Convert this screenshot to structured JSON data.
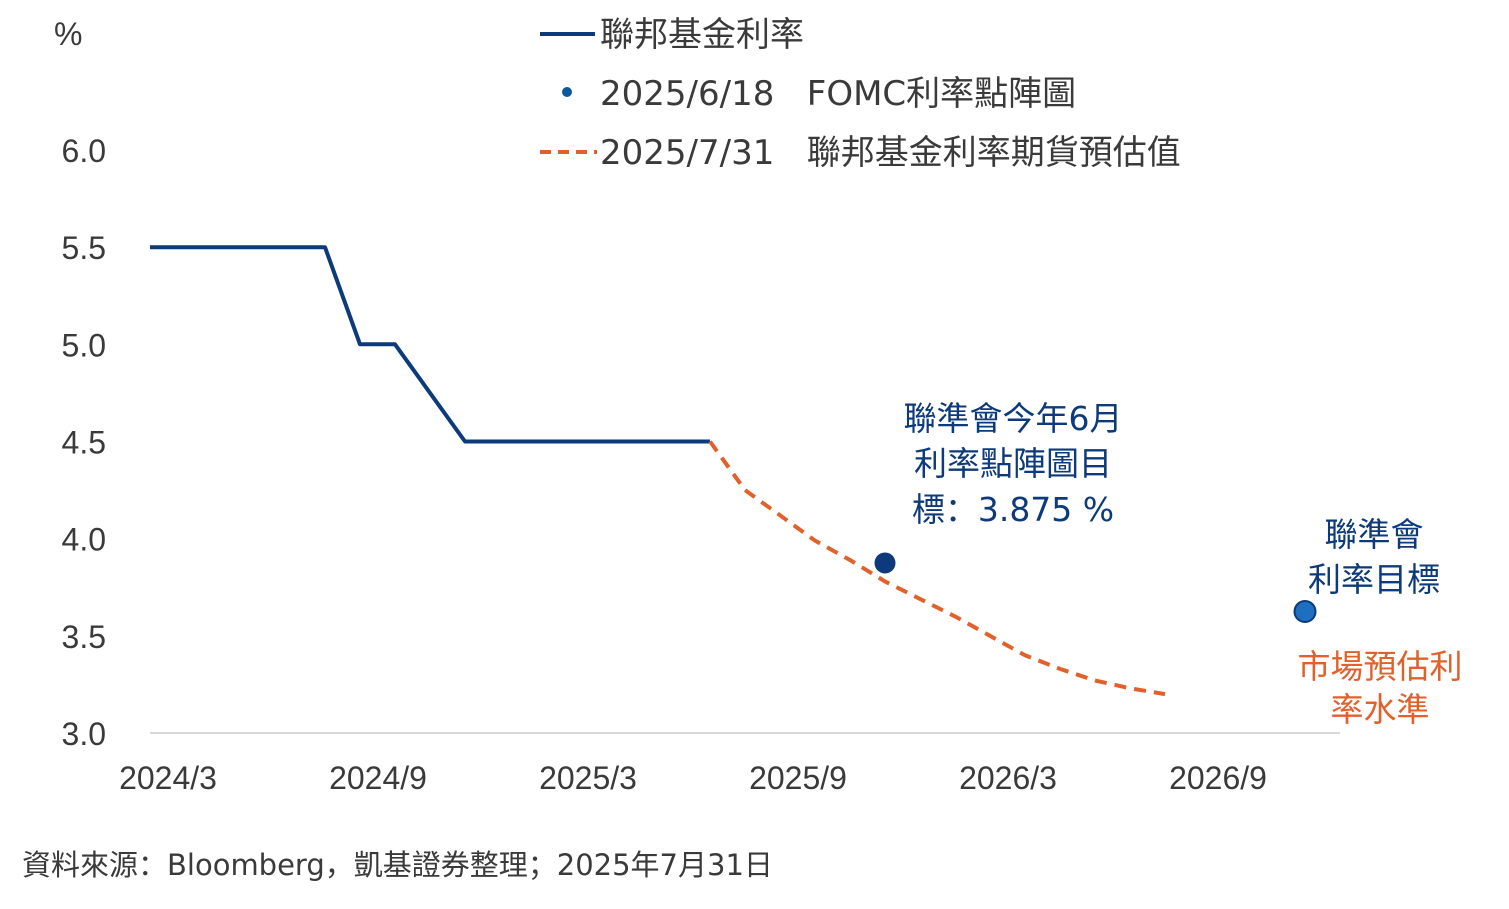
{
  "chart_data": {
    "type": "line",
    "ylabel": "%",
    "ylim": [
      3.0,
      6.0
    ],
    "yticks": [
      "3.0",
      "3.5",
      "4.0",
      "4.5",
      "5.0",
      "5.5",
      "6.0"
    ],
    "xticks": [
      "2024/3",
      "2024/9",
      "2025/3",
      "2025/9",
      "2026/3",
      "2026/9"
    ],
    "grid": false,
    "legend_position": "top",
    "series": [
      {
        "name": "聯邦基金利率",
        "color": "#0d3a7a",
        "style": "solid",
        "points": [
          [
            "2024/03",
            5.5
          ],
          [
            "2024/04",
            5.5
          ],
          [
            "2024/05",
            5.5
          ],
          [
            "2024/06",
            5.5
          ],
          [
            "2024/07",
            5.5
          ],
          [
            "2024/08",
            5.5
          ],
          [
            "2024/09",
            5.0
          ],
          [
            "2024/10",
            5.0
          ],
          [
            "2024/11",
            4.75
          ],
          [
            "2024/12",
            4.5
          ],
          [
            "2025/01",
            4.5
          ],
          [
            "2025/02",
            4.5
          ],
          [
            "2025/03",
            4.5
          ],
          [
            "2025/04",
            4.5
          ],
          [
            "2025/05",
            4.5
          ],
          [
            "2025/06",
            4.5
          ],
          [
            "2025/07",
            4.5
          ]
        ]
      },
      {
        "name": "2025/7/31 聯邦基金利率期貨預估值",
        "legend_label": "2025/7/31   聯邦基金利率期貨預估值",
        "color": "#e2602a",
        "style": "dashed",
        "points": [
          [
            "2025/07",
            4.5
          ],
          [
            "2025/08",
            4.25
          ],
          [
            "2025/09",
            4.12
          ],
          [
            "2025/10",
            3.99
          ],
          [
            "2025/11",
            3.89
          ],
          [
            "2025/12",
            3.78
          ],
          [
            "2026/01",
            3.69
          ],
          [
            "2026/02",
            3.6
          ],
          [
            "2026/03",
            3.5
          ],
          [
            "2026/04",
            3.4
          ],
          [
            "2026/05",
            3.33
          ],
          [
            "2026/06",
            3.27
          ],
          [
            "2026/07",
            3.23
          ],
          [
            "2026/08",
            3.2
          ]
        ]
      }
    ],
    "markers": [
      {
        "name": "2025/6/18 FOMC利率點陣圖",
        "legend_label": "2025/6/18   FOMC利率點陣圖",
        "x": "2025/12",
        "y": 3.875,
        "color": "#0d3a7a"
      },
      {
        "x": "2026/12",
        "y": 3.625,
        "color": "#1f6fc0"
      }
    ],
    "annotations": {
      "dot_2025": [
        "聯準會今年6月",
        "利率點陣圖目",
        "標：3.875 %"
      ],
      "dot_2026": [
        "聯準會",
        "利率目標"
      ],
      "market": [
        "市場預估利",
        "率水準"
      ]
    }
  },
  "source": "資料來源：Bloomberg，凱基證券整理；2025年7月31日"
}
